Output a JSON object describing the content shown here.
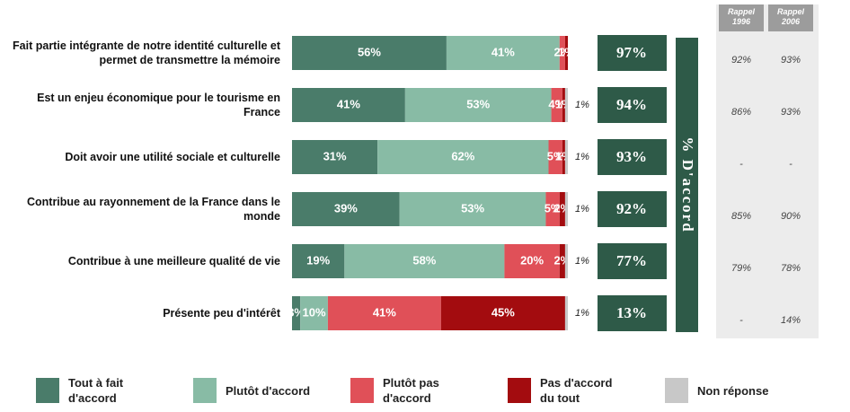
{
  "chart_data": {
    "type": "bar",
    "orientation": "horizontal",
    "categories": [
      "Fait partie intégrante de notre identité culturelle et permet de transmettre la mémoire",
      "Est un enjeu économique pour le tourisme en France",
      "Doit avoir une utilité sociale et culturelle",
      "Contribue au rayonnement de la France dans le monde",
      "Contribue à une meilleure qualité de vie",
      "Présente peu d'intérêt"
    ],
    "xlim": [
      0,
      100
    ],
    "series": [
      {
        "name": "Tout à fait d'accord",
        "color": "#4a7c6a",
        "values": [
          56,
          41,
          31,
          39,
          19,
          3
        ],
        "value_labels": [
          "56%",
          "41%",
          "31%",
          "39%",
          "19%",
          "3%"
        ]
      },
      {
        "name": "Plutôt d'accord",
        "color": "#88bba5",
        "values": [
          41,
          53,
          62,
          53,
          58,
          10
        ],
        "value_labels": [
          "41%",
          "53%",
          "62%",
          "53%",
          "58%",
          "10%"
        ]
      },
      {
        "name": "Plutôt pas d'accord",
        "color": "#e05058",
        "values": [
          2,
          4,
          5,
          5,
          20,
          41
        ],
        "value_labels": [
          "2%",
          "4%",
          "5%",
          "5%",
          "20%",
          "41%"
        ]
      },
      {
        "name": "Pas d'accord du tout",
        "color": "#a30c0f",
        "values": [
          1,
          1,
          1,
          2,
          2,
          45
        ],
        "value_labels": [
          "1%",
          "1%",
          "1%",
          "2%",
          "2%",
          "45%"
        ]
      },
      {
        "name": "Non réponse",
        "color": "#c8c8c8",
        "values": [
          null,
          1,
          1,
          1,
          1,
          1
        ],
        "value_labels": [
          null,
          "1%",
          "1%",
          "1%",
          "1%",
          "1%"
        ]
      }
    ],
    "accord": {
      "title": "% D'accord",
      "color": "#2e5a48",
      "values": [
        97,
        94,
        93,
        92,
        77,
        13
      ],
      "value_labels": [
        "97%",
        "94%",
        "93%",
        "92%",
        "77%",
        "13%"
      ]
    },
    "rappel": [
      {
        "name": "Rappel 1996",
        "values": [
          92,
          86,
          null,
          85,
          79,
          null
        ],
        "value_labels": [
          "92%",
          "86%",
          "-",
          "85%",
          "79%",
          "-"
        ]
      },
      {
        "name": "Rappel 2006",
        "values": [
          93,
          93,
          null,
          90,
          78,
          14
        ],
        "value_labels": [
          "93%",
          "93%",
          "-",
          "90%",
          "78%",
          "14%"
        ]
      }
    ]
  }
}
